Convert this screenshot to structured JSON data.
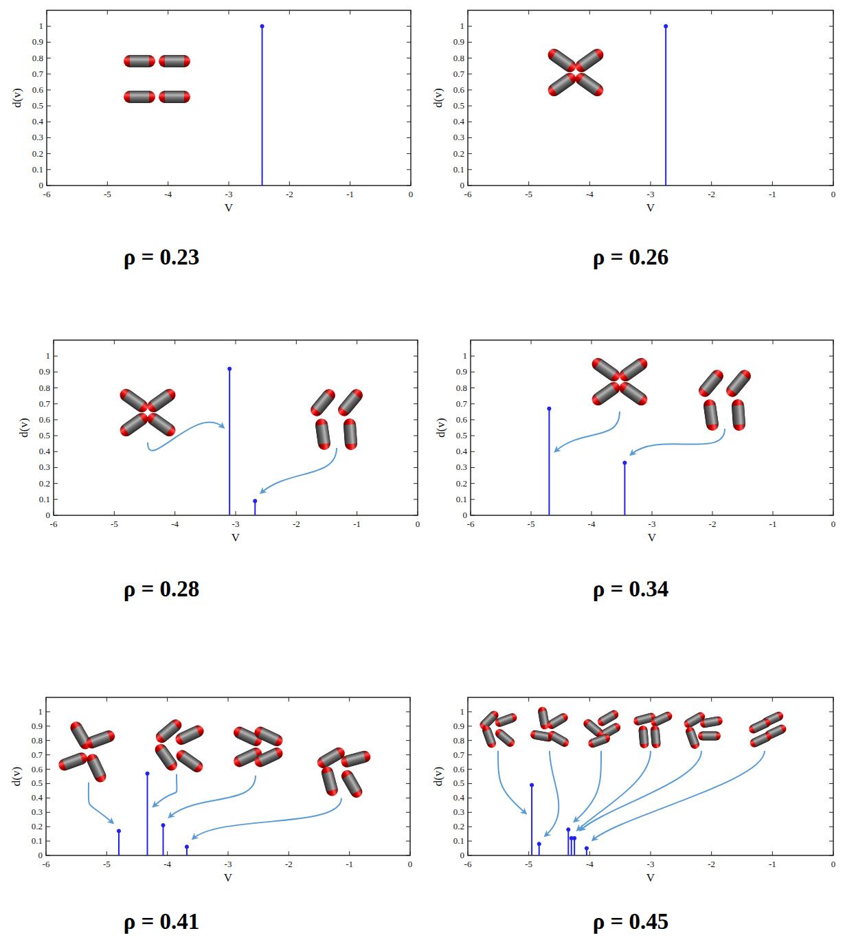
{
  "chart_data": [
    {
      "type": "stem",
      "title": "ρ = 0.23",
      "x_label": "V",
      "y_label": "d(v)",
      "x": [
        -2.45
      ],
      "values": [
        1.0
      ],
      "color": "#2222ee",
      "marker": "o",
      "xlim": [
        -6,
        0
      ],
      "ylim": [
        0,
        1.1
      ],
      "xticks": [
        -6,
        -5,
        -4,
        -3,
        -2,
        -1,
        0
      ],
      "yticks": [
        0,
        0.1,
        0.2,
        0.3,
        0.4,
        0.5,
        0.6,
        0.7,
        0.8,
        0.9,
        1
      ]
    },
    {
      "type": "stem",
      "title": "ρ = 0.26",
      "x_label": "V",
      "y_label": "d(v)",
      "x": [
        -2.75
      ],
      "values": [
        1.0
      ],
      "color": "#2222ee",
      "marker": "o",
      "xlim": [
        -6,
        0
      ],
      "ylim": [
        0,
        1.1
      ],
      "xticks": [
        -6,
        -5,
        -4,
        -3,
        -2,
        -1,
        0
      ],
      "yticks": [
        0,
        0.1,
        0.2,
        0.3,
        0.4,
        0.5,
        0.6,
        0.7,
        0.8,
        0.9,
        1
      ]
    },
    {
      "type": "stem",
      "title": "ρ = 0.28",
      "x_label": "V",
      "y_label": "d(v)",
      "x": [
        -3.1,
        -2.68
      ],
      "values": [
        0.92,
        0.09
      ],
      "color": "#2222ee",
      "marker": "o",
      "xlim": [
        -6,
        0
      ],
      "ylim": [
        0,
        1.1
      ],
      "xticks": [
        -6,
        -5,
        -4,
        -3,
        -2,
        -1,
        0
      ],
      "yticks": [
        0,
        0.1,
        0.2,
        0.3,
        0.4,
        0.5,
        0.6,
        0.7,
        0.8,
        0.9,
        1
      ]
    },
    {
      "type": "stem",
      "title": "ρ = 0.34",
      "x_label": "V",
      "y_label": "d(v)",
      "x": [
        -4.7,
        -3.45
      ],
      "values": [
        0.67,
        0.33
      ],
      "color": "#2222ee",
      "marker": "o",
      "xlim": [
        -6,
        0
      ],
      "ylim": [
        0,
        1.1
      ],
      "xticks": [
        -6,
        -5,
        -4,
        -3,
        -2,
        -1,
        0
      ],
      "yticks": [
        0,
        0.1,
        0.2,
        0.3,
        0.4,
        0.5,
        0.6,
        0.7,
        0.8,
        0.9,
        1
      ]
    },
    {
      "type": "stem",
      "title": "ρ = 0.41",
      "x_label": "V",
      "y_label": "d(v)",
      "x": [
        -4.8,
        -4.33,
        -4.07,
        -3.68
      ],
      "values": [
        0.17,
        0.57,
        0.21,
        0.06
      ],
      "color": "#2222ee",
      "marker": "o",
      "xlim": [
        -6,
        0
      ],
      "ylim": [
        0,
        1.1
      ],
      "xticks": [
        -6,
        -5,
        -4,
        -3,
        -2,
        -1,
        0
      ],
      "yticks": [
        0,
        0.1,
        0.2,
        0.3,
        0.4,
        0.5,
        0.6,
        0.7,
        0.8,
        0.9,
        1
      ]
    },
    {
      "type": "stem",
      "title": "ρ = 0.45",
      "x_label": "V",
      "y_label": "d(v)",
      "x": [
        -4.95,
        -4.83,
        -4.35,
        -4.3,
        -4.25,
        -4.05
      ],
      "values": [
        0.49,
        0.08,
        0.18,
        0.12,
        0.12,
        0.05
      ],
      "color": "#2222ee",
      "marker": "o",
      "xlim": [
        -6,
        0
      ],
      "ylim": [
        0,
        1.1
      ],
      "xticks": [
        -6,
        -5,
        -4,
        -3,
        -2,
        -1,
        0
      ],
      "yticks": [
        0,
        0.1,
        0.2,
        0.3,
        0.4,
        0.5,
        0.6,
        0.7,
        0.8,
        0.9,
        1
      ]
    }
  ]
}
